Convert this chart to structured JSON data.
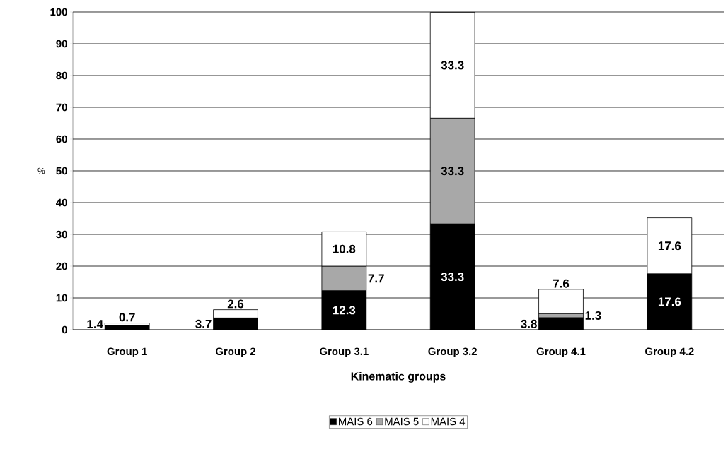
{
  "chart_data": {
    "type": "bar",
    "stacked": true,
    "xlabel": "Kinematic groups",
    "ylabel": "%",
    "categories": [
      "Group 1",
      "Group 2",
      "Group 3.1",
      "Group 3.2",
      "Group 4.1",
      "Group 4.2"
    ],
    "series": [
      {
        "name": "MAIS 6",
        "color": "#000000",
        "values": [
          1.4,
          3.7,
          12.3,
          33.3,
          3.8,
          17.6
        ],
        "value_labels": [
          "1.4",
          "3.7",
          "12.3",
          "33.3",
          "3.8",
          "17.6"
        ]
      },
      {
        "name": "MAIS 5",
        "color": "#a8a8a8",
        "values": [
          null,
          null,
          7.7,
          33.3,
          1.3,
          null
        ],
        "value_labels": [
          null,
          null,
          "7.7",
          "33.3",
          "1.3",
          null
        ]
      },
      {
        "name": "MAIS 4",
        "color": "#ffffff",
        "values": [
          0.7,
          2.6,
          10.8,
          33.3,
          7.6,
          17.6
        ],
        "value_labels": [
          "0.7",
          "2.6",
          "10.8",
          "33.3",
          "7.6",
          "17.6"
        ]
      }
    ],
    "ylim": [
      0,
      100
    ],
    "yticks": [
      0,
      10,
      20,
      30,
      40,
      50,
      60,
      70,
      80,
      90,
      100
    ],
    "grid": "y",
    "legend": "bottom"
  }
}
